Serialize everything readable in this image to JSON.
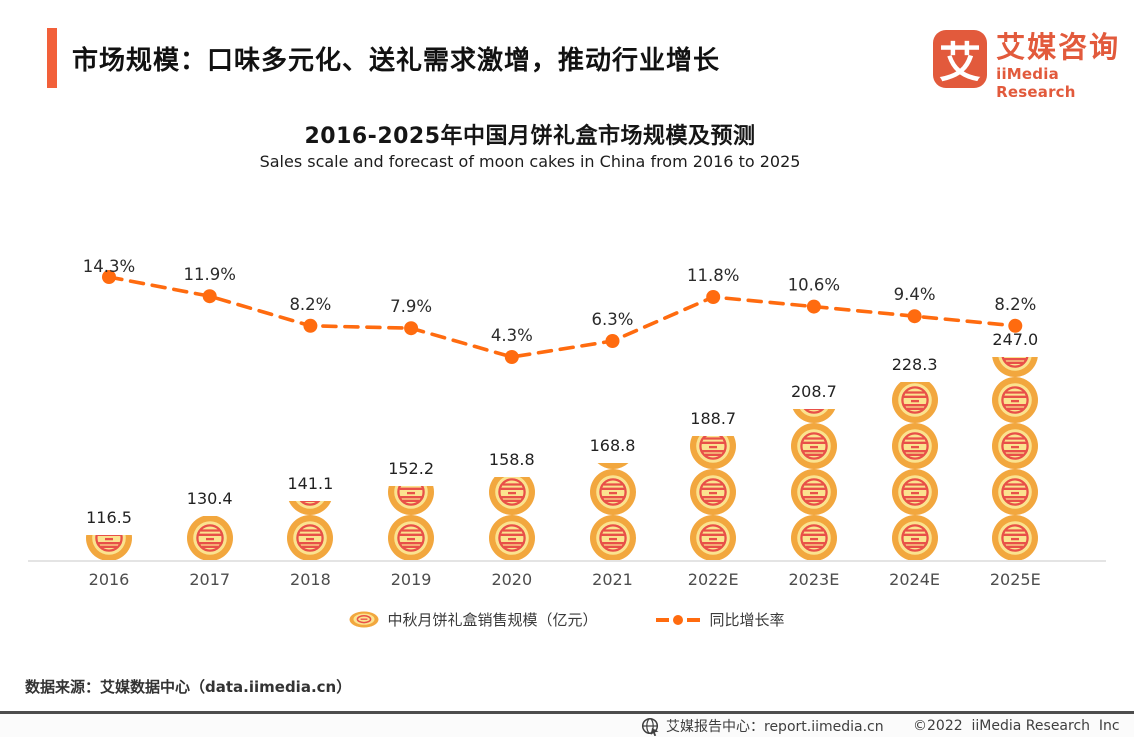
{
  "header": {
    "title": "市场规模：口味多元化、送礼需求激增，推动行业增长"
  },
  "logo": {
    "symbol": "艾",
    "name_cn": "艾媒咨询",
    "name_en": "iiMedia Research"
  },
  "chart": {
    "title": "2016-2025年中国月饼礼盒市场规模及预测",
    "subtitle": "Sales scale and forecast of moon cakes in China from 2016 to 2025"
  },
  "chart_data": {
    "type": "bar",
    "title": "2016-2025年中国月饼礼盒市场规模及预测",
    "subtitle": "Sales scale and forecast of moon cakes in China from 2016 to 2025",
    "categories": [
      "2016",
      "2017",
      "2018",
      "2019",
      "2020",
      "2021",
      "2022E",
      "2023E",
      "2024E",
      "2025E"
    ],
    "series": [
      {
        "name": "中秋月饼礼盒销售规模（亿元）",
        "type": "pictorial-bar",
        "values": [
          116.5,
          130.4,
          141.1,
          152.2,
          158.8,
          168.8,
          188.7,
          208.7,
          228.3,
          247.0
        ]
      },
      {
        "name": "同比增长率",
        "type": "line",
        "unit": "%",
        "values": [
          14.3,
          11.9,
          8.2,
          7.9,
          4.3,
          6.3,
          11.8,
          10.6,
          9.4,
          8.2
        ]
      }
    ],
    "xlabel": "",
    "ylabel": "",
    "grid": false,
    "legend_position": "bottom"
  },
  "footer": {
    "source": "数据来源：艾媒数据中心（data.iimedia.cn）",
    "report_center": "艾媒报告中心：report.iimedia.cn",
    "copyright": "©2022  iiMedia Research  Inc"
  },
  "colors": {
    "accent": "#F2603A",
    "logo": "#E25A3C",
    "line": "#FF6B0F",
    "cake_outer": "#F2A73E",
    "cake_inner": "#FBE38F",
    "cake_pattern": "#E85048",
    "axis_line": "#E4E4E4",
    "value_text": "#222222",
    "axis_text": "#4D4D4D"
  }
}
